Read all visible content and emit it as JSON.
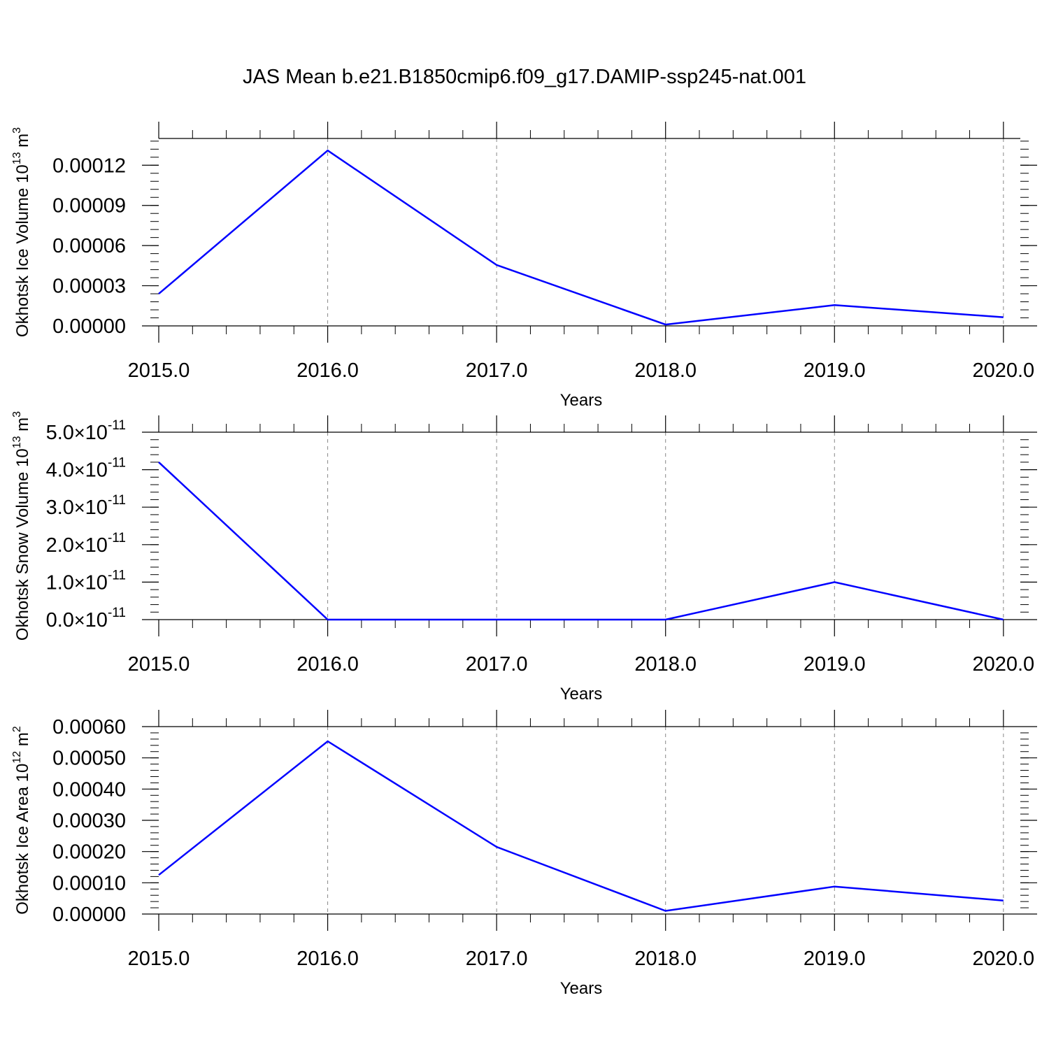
{
  "title": "JAS Mean b.e21.B1850cmip6.f09_g17.DAMIP-ssp245-nat.001",
  "colors": {
    "series": "#0000ff",
    "axis": "#000000",
    "grid": "#888888"
  },
  "chart_data": [
    {
      "type": "line",
      "ylabel": "Okhotsk Ice Volume",
      "ylabel_unit_base": "10",
      "ylabel_unit_exp": "13",
      "ylabel_unit_rest": " m",
      "ylabel_unit_rest_exp": "3",
      "xlabel": "Years",
      "xlim": [
        2015.0,
        2020.1
      ],
      "ylim": [
        0.0,
        0.00014
      ],
      "xticks": [
        "2015.0",
        "2016.0",
        "2017.0",
        "2018.0",
        "2019.0",
        "2020.0"
      ],
      "xtick_values": [
        2015,
        2016,
        2017,
        2018,
        2019,
        2020
      ],
      "yticks": [
        "0.00000",
        "0.00003",
        "0.00006",
        "0.00009",
        "0.00012"
      ],
      "ytick_values": [
        0.0,
        3e-05,
        6e-05,
        9e-05,
        0.00012
      ],
      "grid_x": true,
      "x": [
        2015,
        2016,
        2017,
        2018,
        2019,
        2020
      ],
      "values": [
        2.4e-05,
        0.000131,
        4.55e-05,
        1e-06,
        1.55e-05,
        6.5e-06
      ]
    },
    {
      "type": "line",
      "ylabel": "Okhotsk Snow Volume",
      "ylabel_unit_base": "10",
      "ylabel_unit_exp": "13",
      "ylabel_unit_rest": " m",
      "ylabel_unit_rest_exp": "3",
      "xlabel": "Years",
      "xlim": [
        2015.0,
        2020.1
      ],
      "ylim": [
        0.0,
        5e-11
      ],
      "xticks": [
        "2015.0",
        "2016.0",
        "2017.0",
        "2018.0",
        "2019.0",
        "2020.0"
      ],
      "xtick_values": [
        2015,
        2016,
        2017,
        2018,
        2019,
        2020
      ],
      "yticks_mantissa": [
        "0.0",
        "1.0",
        "2.0",
        "3.0",
        "4.0",
        "5.0"
      ],
      "yticks_exponent": "-11",
      "ytick_values": [
        0.0,
        1e-11,
        2e-11,
        3e-11,
        4e-11,
        5e-11
      ],
      "grid_x": true,
      "x": [
        2015,
        2016,
        2017,
        2018,
        2019,
        2020
      ],
      "values": [
        4.2e-11,
        0.0,
        0.0,
        0.0,
        1e-11,
        0.0
      ]
    },
    {
      "type": "line",
      "ylabel": "Okhotsk Ice Area",
      "ylabel_unit_base": "10",
      "ylabel_unit_exp": "12",
      "ylabel_unit_rest": " m",
      "ylabel_unit_rest_exp": "2",
      "xlabel": "Years",
      "xlim": [
        2015.0,
        2020.1
      ],
      "ylim": [
        0.0,
        0.0006
      ],
      "xticks": [
        "2015.0",
        "2016.0",
        "2017.0",
        "2018.0",
        "2019.0",
        "2020.0"
      ],
      "xtick_values": [
        2015,
        2016,
        2017,
        2018,
        2019,
        2020
      ],
      "yticks": [
        "0.00000",
        "0.00010",
        "0.00020",
        "0.00030",
        "0.00040",
        "0.00050",
        "0.00060"
      ],
      "ytick_values": [
        0.0,
        0.0001,
        0.0002,
        0.0003,
        0.0004,
        0.0005,
        0.0006
      ],
      "grid_x": true,
      "x": [
        2015,
        2016,
        2017,
        2018,
        2019,
        2020
      ],
      "values": [
        0.000125,
        0.000553,
        0.000215,
        1e-05,
        8.8e-05,
        4.3e-05
      ]
    }
  ]
}
